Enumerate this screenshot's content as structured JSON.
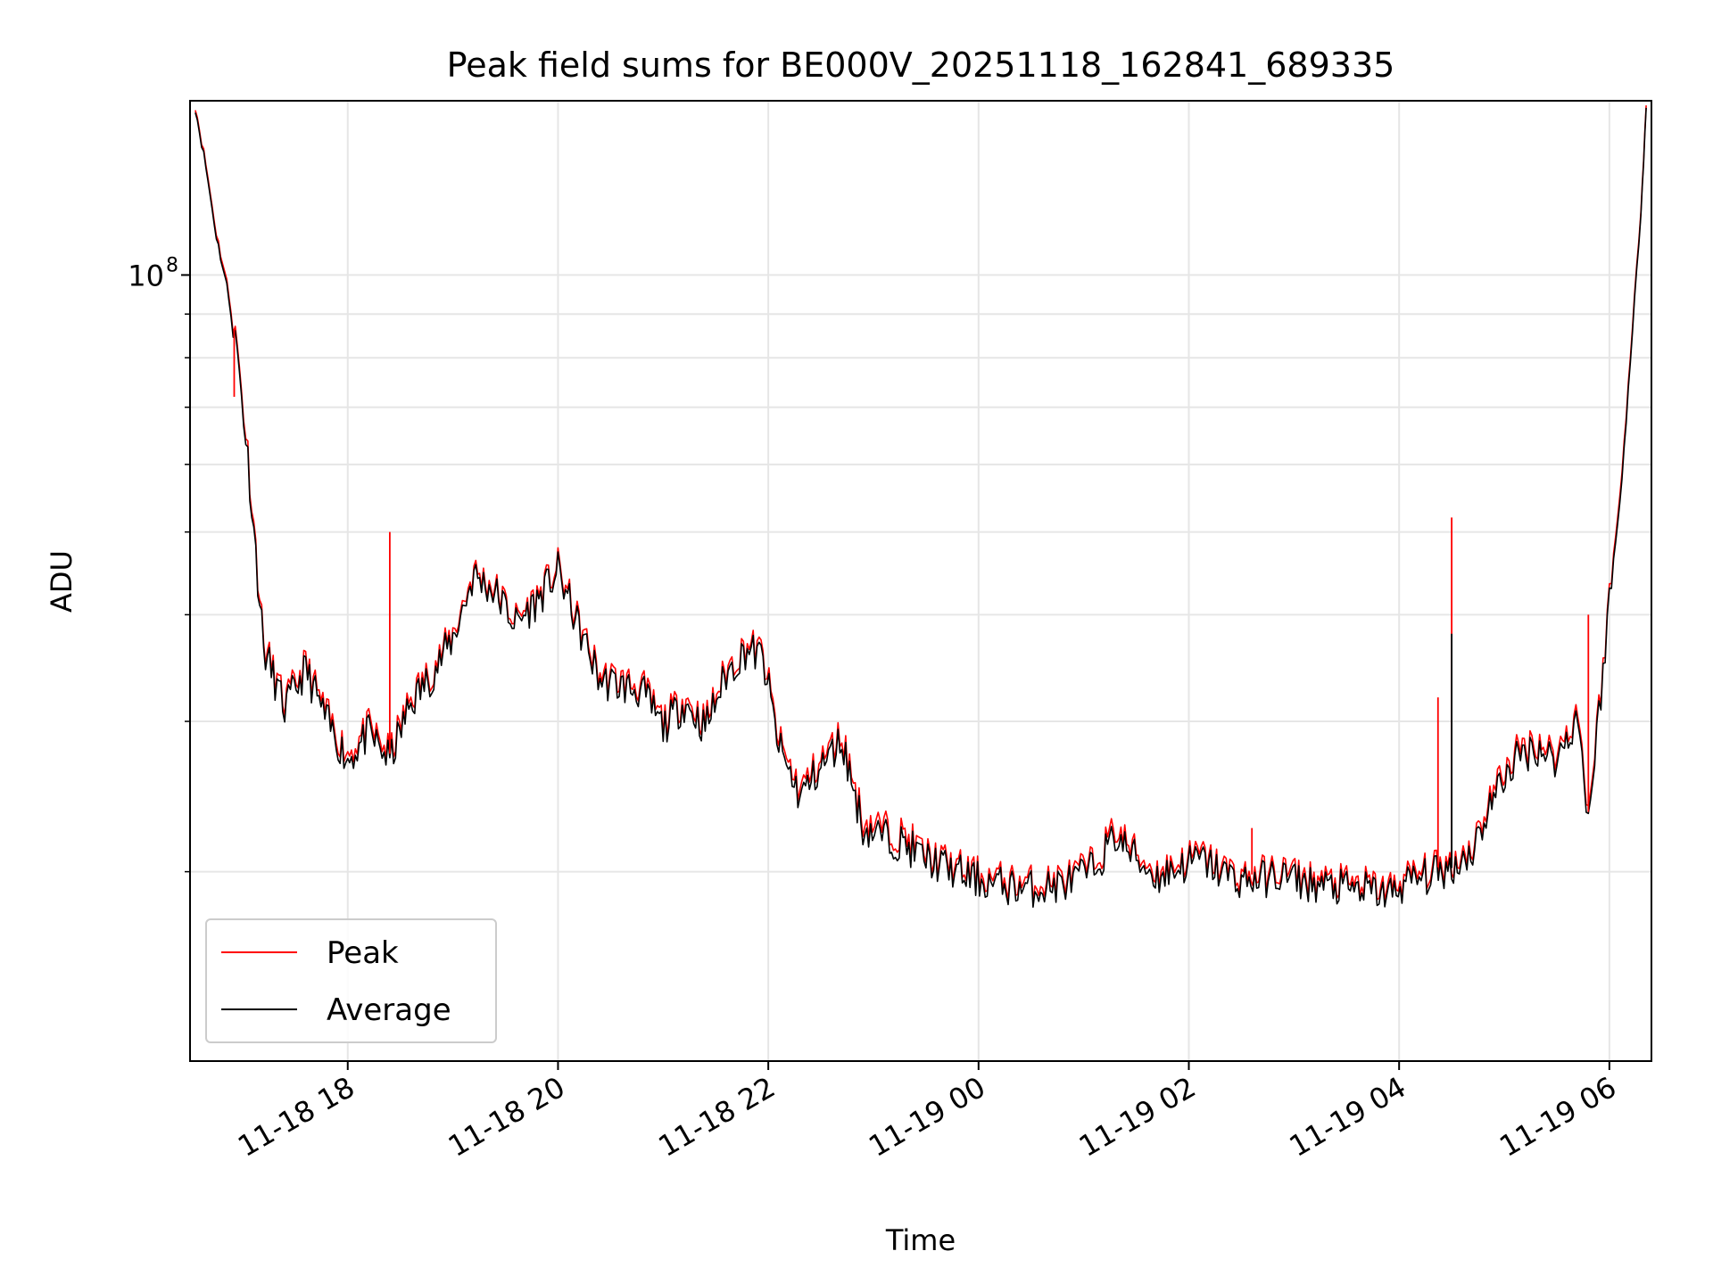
{
  "chart_data": {
    "type": "line",
    "title": "Peak field sums for BE000V_20251118_162841_689335",
    "xlabel": "Time",
    "ylabel": "ADU",
    "yscale": "log",
    "ylim": [
      12000000,
      160000000
    ],
    "xlim_hours": [
      16.5,
      30.4
    ],
    "grid": true,
    "legend_position": "lower-left",
    "x_ticks": [
      {
        "hour": 18,
        "label": "11-18 18"
      },
      {
        "hour": 20,
        "label": "11-18 20"
      },
      {
        "hour": 22,
        "label": "11-18 22"
      },
      {
        "hour": 24,
        "label": "11-19 00"
      },
      {
        "hour": 26,
        "label": "11-19 02"
      },
      {
        "hour": 28,
        "label": "11-19 04"
      },
      {
        "hour": 30,
        "label": "11-19 06"
      }
    ],
    "y_major_tick": {
      "value": 100000000,
      "base": "10",
      "exponent": "8"
    },
    "y_minor_ticks": [
      20000000,
      30000000,
      40000000,
      50000000,
      60000000,
      70000000,
      80000000,
      90000000
    ],
    "x_hours": [
      16.55,
      16.65,
      16.75,
      16.85,
      16.95,
      17.05,
      17.2,
      17.4,
      17.6,
      17.8,
      18.0,
      18.2,
      18.4,
      18.6,
      18.8,
      19.0,
      19.2,
      19.4,
      19.6,
      19.8,
      20.0,
      20.2,
      20.4,
      20.6,
      20.8,
      21.0,
      21.2,
      21.4,
      21.6,
      21.8,
      21.95,
      22.1,
      22.3,
      22.5,
      22.7,
      22.9,
      23.1,
      23.3,
      23.5,
      23.7,
      23.9,
      24.1,
      24.3,
      24.5,
      24.7,
      24.9,
      25.1,
      25.3,
      25.5,
      25.7,
      25.9,
      26.1,
      26.3,
      26.5,
      26.7,
      26.9,
      27.1,
      27.3,
      27.5,
      27.7,
      27.9,
      28.1,
      28.3,
      28.5,
      28.7,
      28.9,
      29.1,
      29.3,
      29.5,
      29.7,
      29.8,
      29.9,
      30.0,
      30.1,
      30.2,
      30.3,
      30.35
    ],
    "series": [
      {
        "name": "Peak",
        "color": "#ff0000",
        "values": [
          158000000,
          135000000,
          112000000,
          98000000,
          82000000,
          62000000,
          37000000,
          31500000,
          35000000,
          30500000,
          27500000,
          29500000,
          27500000,
          32000000,
          34500000,
          38000000,
          45000000,
          43000000,
          39500000,
          42000000,
          45500000,
          39000000,
          34000000,
          33500000,
          33000000,
          30000000,
          32000000,
          30000000,
          34500000,
          37000000,
          36000000,
          28500000,
          25000000,
          27000000,
          29000000,
          23000000,
          22500000,
          22000000,
          21000000,
          20500000,
          20000000,
          19700000,
          19500000,
          19400000,
          19500000,
          19800000,
          20500000,
          22500000,
          21000000,
          20000000,
          20500000,
          21000000,
          20300000,
          19800000,
          19900000,
          20100000,
          19700000,
          19500000,
          19400000,
          19300000,
          19100000,
          19800000,
          20100000,
          20500000,
          21500000,
          25000000,
          27500000,
          28500000,
          27500000,
          31000000,
          23500000,
          31000000,
          42000000,
          55000000,
          80000000,
          120000000,
          158000000
        ]
      },
      {
        "name": "Average",
        "color": "#000000",
        "values": [
          157000000,
          134000000,
          111000000,
          97000000,
          81000000,
          61000000,
          36500000,
          31000000,
          34500000,
          30000000,
          27000000,
          29000000,
          27000000,
          31500000,
          34000000,
          37500000,
          44500000,
          42500000,
          39000000,
          41500000,
          45000000,
          38500000,
          33500000,
          33000000,
          32500000,
          29500000,
          31500000,
          29500000,
          34000000,
          36500000,
          35500000,
          28000000,
          24500000,
          26500000,
          28500000,
          22500000,
          22000000,
          21500000,
          20700000,
          20200000,
          19700000,
          19400000,
          19200000,
          19100000,
          19200000,
          19500000,
          20200000,
          22000000,
          20700000,
          19700000,
          20200000,
          20700000,
          20000000,
          19500000,
          19600000,
          19800000,
          19400000,
          19200000,
          19100000,
          19000000,
          18800000,
          19500000,
          19800000,
          20200000,
          21200000,
          24500000,
          27000000,
          28000000,
          27000000,
          30500000,
          23000000,
          30500000,
          41500000,
          54000000,
          79000000,
          119000000,
          157000000
        ]
      }
    ],
    "spikes": [
      {
        "series": "Peak",
        "hour": 18.4,
        "value": 50000000
      },
      {
        "series": "Peak",
        "hour": 16.92,
        "value": 72000000
      },
      {
        "series": "Peak",
        "hour": 26.6,
        "value": 22500000
      },
      {
        "series": "Peak",
        "hour": 28.37,
        "value": 32000000
      },
      {
        "series": "Peak",
        "hour": 28.5,
        "value": 52000000
      },
      {
        "series": "Average",
        "hour": 28.5,
        "value": 38000000
      },
      {
        "series": "Peak",
        "hour": 29.8,
        "value": 40000000
      }
    ]
  }
}
